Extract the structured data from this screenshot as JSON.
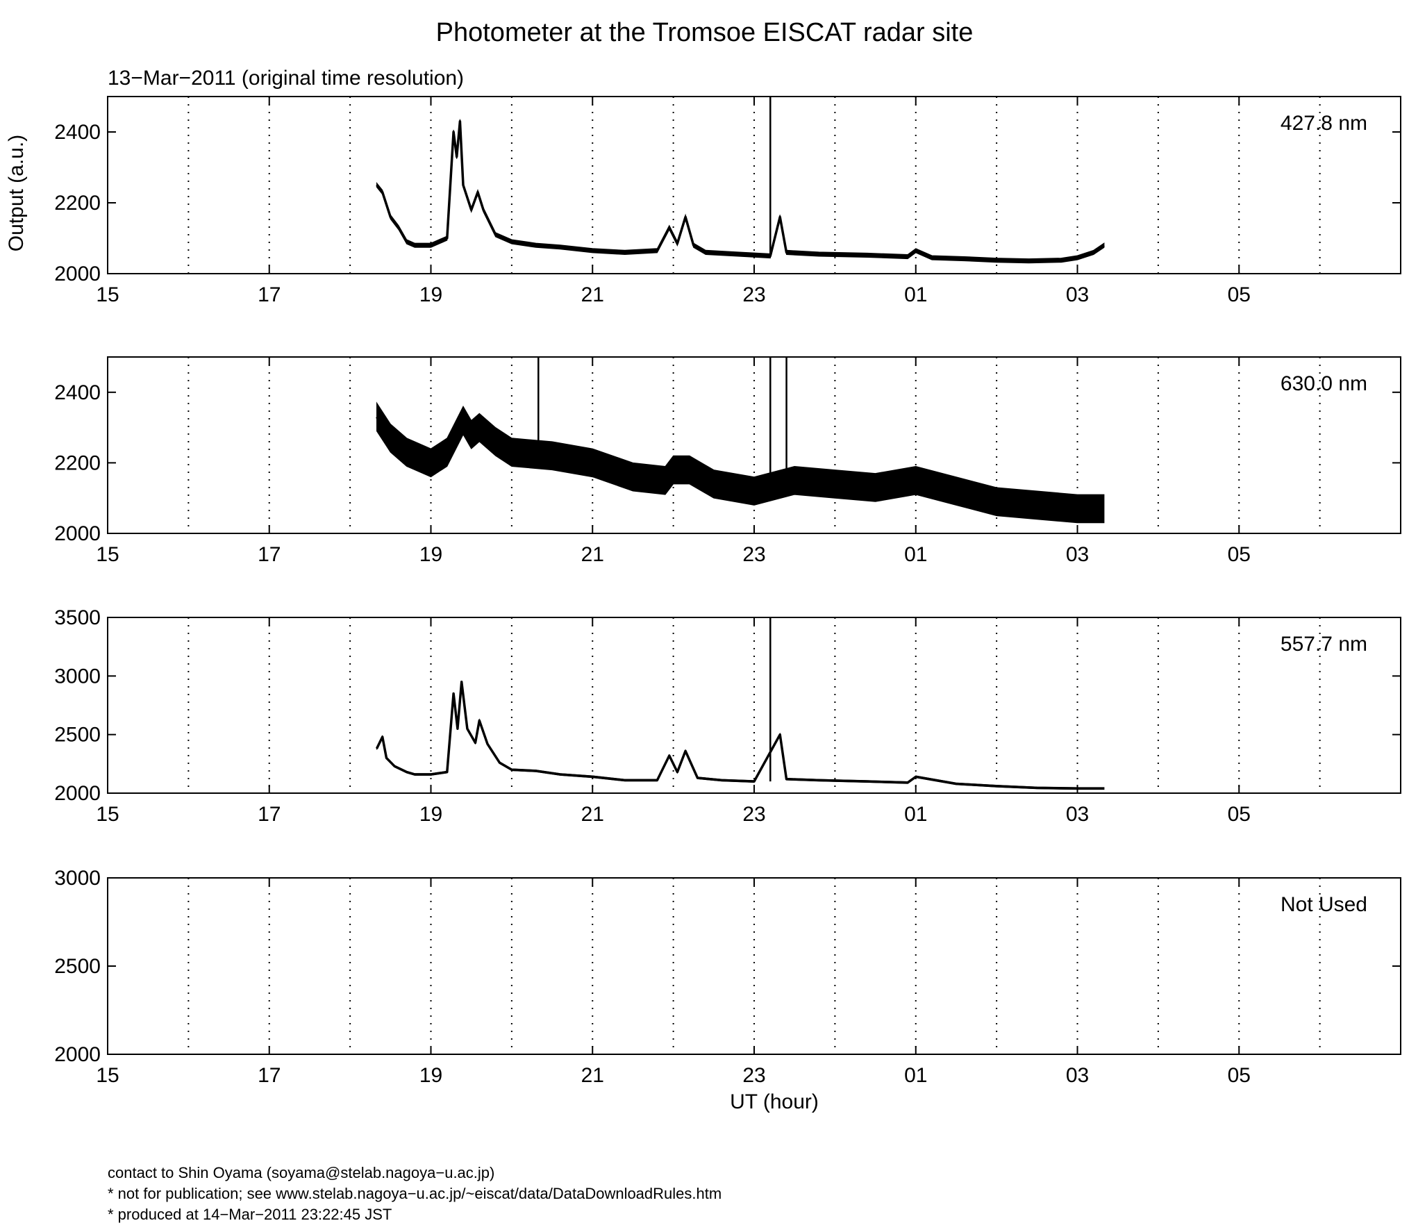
{
  "title": "Photometer at the Tromsoe EISCAT radar site",
  "subtitle": "13−Mar−2011 (original time resolution)",
  "ylabel": "Output (a.u.)",
  "xlabel": "UT (hour)",
  "footer": {
    "line1": "contact to Shin Oyama (soyama@stelab.nagoya−u.ac.jp)",
    "line2": "* not for publication; see www.stelab.nagoya−u.ac.jp/~eiscat/data/DataDownloadRules.htm",
    "line3": "* produced at 14−Mar−2011 23:22:45 JST"
  },
  "chart_data": [
    {
      "type": "line",
      "label": "427.8 nm",
      "xlim": [
        15,
        31
      ],
      "ylim": [
        2000,
        2500
      ],
      "yticks": [
        2000,
        2200,
        2400
      ],
      "xticks": [
        "15",
        "17",
        "19",
        "21",
        "23",
        "01",
        "03",
        "05"
      ],
      "grid": "vertical dotted every hour",
      "x": [
        18.33,
        18.4,
        18.5,
        18.6,
        18.7,
        18.8,
        19.0,
        19.2,
        19.28,
        19.32,
        19.36,
        19.4,
        19.5,
        19.58,
        19.65,
        19.8,
        20.0,
        20.3,
        20.6,
        21.0,
        21.4,
        21.8,
        21.95,
        22.05,
        22.15,
        22.25,
        22.4,
        22.8,
        23.2,
        23.32,
        23.4,
        23.8,
        24.4,
        24.9,
        25.0,
        25.2,
        25.6,
        26.0,
        26.4,
        26.8,
        27.0,
        27.2,
        27.33
      ],
      "values": [
        2250,
        2230,
        2160,
        2130,
        2090,
        2080,
        2080,
        2100,
        2400,
        2330,
        2430,
        2250,
        2180,
        2230,
        2180,
        2110,
        2090,
        2080,
        2075,
        2065,
        2060,
        2065,
        2130,
        2085,
        2160,
        2080,
        2060,
        2055,
        2050,
        2160,
        2060,
        2055,
        2052,
        2048,
        2065,
        2045,
        2042,
        2038,
        2036,
        2038,
        2045,
        2060,
        2080
      ],
      "spikes": [
        {
          "x": 23.2,
          "top": 2500
        }
      ],
      "band": 6
    },
    {
      "type": "line",
      "label": "630.0 nm",
      "xlim": [
        15,
        31
      ],
      "ylim": [
        2000,
        2500
      ],
      "yticks": [
        2000,
        2200,
        2400
      ],
      "xticks": [
        "15",
        "17",
        "19",
        "21",
        "23",
        "01",
        "03",
        "05"
      ],
      "grid": "vertical dotted every hour",
      "x": [
        18.33,
        18.5,
        18.7,
        19.0,
        19.2,
        19.4,
        19.5,
        19.6,
        19.8,
        20.0,
        20.5,
        21.0,
        21.5,
        21.9,
        22.0,
        22.2,
        22.5,
        23.0,
        23.5,
        24.0,
        24.5,
        25.0,
        25.5,
        26.0,
        26.5,
        27.0,
        27.33
      ],
      "values": [
        2330,
        2270,
        2230,
        2200,
        2230,
        2320,
        2280,
        2300,
        2260,
        2230,
        2220,
        2200,
        2160,
        2150,
        2180,
        2180,
        2140,
        2120,
        2150,
        2140,
        2130,
        2150,
        2120,
        2090,
        2080,
        2070,
        2070
      ],
      "spikes": [
        {
          "x": 20.33,
          "top": 2500
        },
        {
          "x": 23.2,
          "top": 2500
        },
        {
          "x": 23.4,
          "top": 2500
        }
      ],
      "band": 40
    },
    {
      "type": "line",
      "label": "557.7 nm",
      "xlim": [
        15,
        31
      ],
      "ylim": [
        2000,
        3500
      ],
      "yticks": [
        2000,
        2500,
        3000,
        3500
      ],
      "xticks": [
        "15",
        "17",
        "19",
        "21",
        "23",
        "01",
        "03",
        "05"
      ],
      "grid": "vertical dotted every hour",
      "x": [
        18.33,
        18.4,
        18.45,
        18.55,
        18.7,
        18.8,
        19.0,
        19.2,
        19.28,
        19.33,
        19.38,
        19.45,
        19.55,
        19.6,
        19.7,
        19.85,
        20.0,
        20.3,
        20.6,
        21.0,
        21.4,
        21.8,
        21.95,
        22.05,
        22.15,
        22.3,
        22.6,
        23.0,
        23.32,
        23.4,
        23.8,
        24.4,
        24.9,
        25.0,
        25.5,
        26.0,
        26.5,
        27.0,
        27.33
      ],
      "values": [
        2380,
        2480,
        2300,
        2230,
        2180,
        2160,
        2160,
        2180,
        2850,
        2550,
        2950,
        2550,
        2430,
        2620,
        2420,
        2260,
        2200,
        2190,
        2160,
        2140,
        2110,
        2110,
        2320,
        2180,
        2360,
        2130,
        2110,
        2100,
        2500,
        2120,
        2110,
        2100,
        2090,
        2140,
        2080,
        2060,
        2045,
        2040,
        2040
      ],
      "spikes": [
        {
          "x": 23.2,
          "top": 3500
        }
      ],
      "band": 8
    },
    {
      "type": "line",
      "label": "Not Used",
      "xlim": [
        15,
        31
      ],
      "ylim": [
        2000,
        3000
      ],
      "yticks": [
        2000,
        2500,
        3000
      ],
      "xticks": [
        "15",
        "17",
        "19",
        "21",
        "23",
        "01",
        "03",
        "05"
      ],
      "grid": "vertical dotted every hour",
      "x": [],
      "values": [],
      "spikes": [],
      "band": 0
    }
  ]
}
